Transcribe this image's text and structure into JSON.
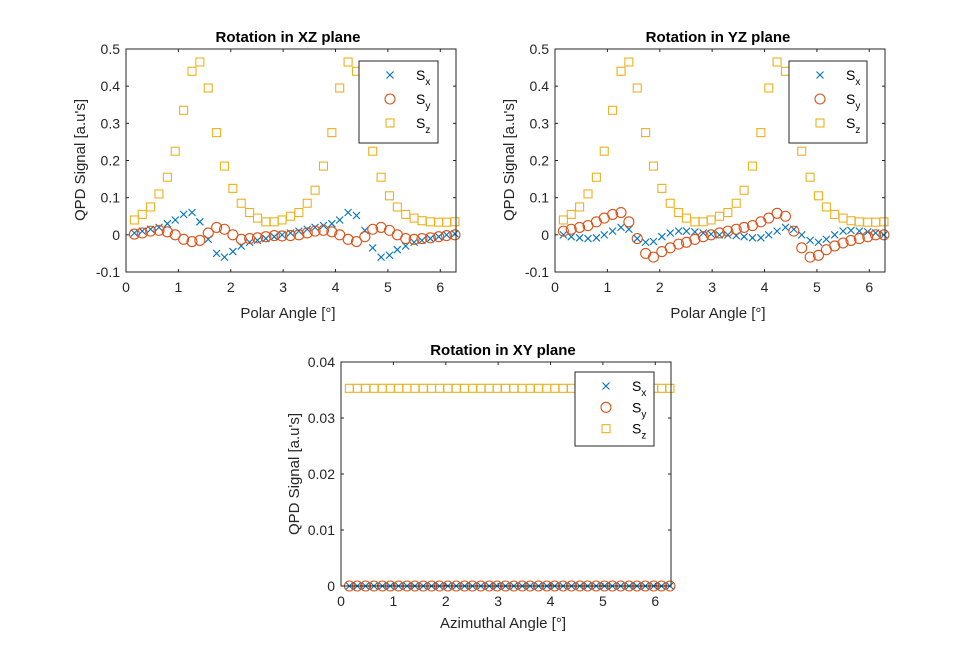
{
  "chart_data": [
    {
      "type": "scatter",
      "title": "Rotation in XZ plane",
      "xlabel": "Polar Angle [°]",
      "ylabel": "QPD Signal [a.u's]",
      "xlim": [
        0,
        6.3
      ],
      "ylim": [
        -0.1,
        0.5
      ],
      "xticks": [
        "0",
        "1",
        "2",
        "3",
        "4",
        "5",
        "6"
      ],
      "yticks": [
        "-0.1",
        "0",
        "0.1",
        "0.2",
        "0.3",
        "0.4",
        "0.5"
      ],
      "legend_position": "top-right",
      "x": [
        0.16,
        0.31,
        0.47,
        0.63,
        0.79,
        0.94,
        1.1,
        1.26,
        1.41,
        1.57,
        1.73,
        1.88,
        2.04,
        2.2,
        2.36,
        2.51,
        2.67,
        2.83,
        2.98,
        3.14,
        3.3,
        3.46,
        3.61,
        3.77,
        3.93,
        4.08,
        4.24,
        4.4,
        4.56,
        4.71,
        4.87,
        5.03,
        5.18,
        5.34,
        5.5,
        5.65,
        5.81,
        5.97,
        6.12,
        6.28
      ],
      "series": [
        {
          "name": "S_x",
          "marker": "x",
          "color": "#0072BD",
          "values": [
            0.005,
            0.01,
            0.015,
            0.02,
            0.03,
            0.04,
            0.055,
            0.06,
            0.035,
            -0.012,
            -0.05,
            -0.06,
            -0.045,
            -0.03,
            -0.02,
            -0.015,
            -0.01,
            -0.005,
            0.0,
            0.005,
            0.01,
            0.015,
            0.02,
            0.025,
            0.03,
            0.04,
            0.06,
            0.052,
            0.012,
            -0.035,
            -0.06,
            -0.055,
            -0.04,
            -0.03,
            -0.02,
            -0.015,
            -0.01,
            -0.005,
            0.0,
            0.003
          ]
        },
        {
          "name": "S_y",
          "marker": "o",
          "color": "#D95319",
          "values": [
            0.002,
            0.005,
            0.01,
            0.012,
            0.008,
            0.0,
            -0.012,
            -0.018,
            -0.015,
            0.005,
            0.02,
            0.015,
            0.0,
            -0.012,
            -0.01,
            -0.008,
            -0.005,
            -0.002,
            -0.003,
            -0.002,
            0.0,
            0.005,
            0.01,
            0.012,
            0.008,
            0.0,
            -0.012,
            -0.018,
            -0.005,
            0.015,
            0.02,
            0.012,
            0.0,
            -0.01,
            -0.012,
            -0.01,
            -0.008,
            -0.005,
            -0.002,
            0.0
          ]
        },
        {
          "name": "S_z",
          "marker": "square",
          "color": "#EDB120",
          "values": [
            0.04,
            0.055,
            0.075,
            0.11,
            0.155,
            0.225,
            0.335,
            0.44,
            0.465,
            0.395,
            0.275,
            0.185,
            0.125,
            0.085,
            0.06,
            0.045,
            0.035,
            0.035,
            0.04,
            0.05,
            0.06,
            0.085,
            0.12,
            0.185,
            0.275,
            0.395,
            0.465,
            0.44,
            0.335,
            0.225,
            0.155,
            0.105,
            0.075,
            0.055,
            0.045,
            0.038,
            0.035,
            0.034,
            0.034,
            0.035
          ]
        }
      ]
    },
    {
      "type": "scatter",
      "title": "Rotation in YZ plane",
      "xlabel": "Polar Angle [°]",
      "ylabel": "QPD Signal [a.u's]",
      "xlim": [
        0,
        6.3
      ],
      "ylim": [
        -0.1,
        0.5
      ],
      "xticks": [
        "0",
        "1",
        "2",
        "3",
        "4",
        "5",
        "6"
      ],
      "yticks": [
        "-0.1",
        "0",
        "0.1",
        "0.2",
        "0.3",
        "0.4",
        "0.5"
      ],
      "legend_position": "top-right",
      "x": [
        0.16,
        0.31,
        0.47,
        0.63,
        0.79,
        0.94,
        1.1,
        1.26,
        1.41,
        1.57,
        1.73,
        1.88,
        2.04,
        2.2,
        2.36,
        2.51,
        2.67,
        2.83,
        2.98,
        3.14,
        3.3,
        3.46,
        3.61,
        3.77,
        3.93,
        4.08,
        4.24,
        4.4,
        4.56,
        4.71,
        4.87,
        5.03,
        5.18,
        5.34,
        5.5,
        5.65,
        5.81,
        5.97,
        6.12,
        6.28
      ],
      "series": [
        {
          "name": "S_x",
          "marker": "x",
          "color": "#0072BD",
          "values": [
            0.0,
            -0.005,
            -0.008,
            -0.01,
            -0.008,
            0.0,
            0.01,
            0.02,
            0.015,
            -0.01,
            -0.02,
            -0.018,
            -0.005,
            0.005,
            0.01,
            0.01,
            0.008,
            0.005,
            0.002,
            0.0,
            0.0,
            -0.002,
            -0.005,
            -0.008,
            -0.008,
            0.0,
            0.01,
            0.02,
            0.015,
            0.0,
            -0.015,
            -0.02,
            -0.012,
            0.0,
            0.01,
            0.012,
            0.01,
            0.008,
            0.005,
            0.0
          ]
        },
        {
          "name": "S_y",
          "marker": "o",
          "color": "#D95319",
          "values": [
            0.01,
            0.015,
            0.02,
            0.025,
            0.035,
            0.045,
            0.055,
            0.06,
            0.035,
            -0.01,
            -0.05,
            -0.06,
            -0.045,
            -0.035,
            -0.025,
            -0.02,
            -0.012,
            -0.005,
            0.0,
            0.005,
            0.01,
            0.015,
            0.02,
            0.025,
            0.035,
            0.045,
            0.058,
            0.05,
            0.01,
            -0.035,
            -0.06,
            -0.055,
            -0.04,
            -0.03,
            -0.022,
            -0.015,
            -0.01,
            -0.005,
            0.0,
            0.0
          ]
        },
        {
          "name": "S_z",
          "marker": "square",
          "color": "#EDB120",
          "values": [
            0.04,
            0.055,
            0.075,
            0.11,
            0.155,
            0.225,
            0.335,
            0.44,
            0.465,
            0.395,
            0.275,
            0.185,
            0.125,
            0.085,
            0.06,
            0.045,
            0.035,
            0.035,
            0.04,
            0.05,
            0.06,
            0.085,
            0.12,
            0.185,
            0.275,
            0.395,
            0.465,
            0.44,
            0.335,
            0.225,
            0.155,
            0.105,
            0.075,
            0.055,
            0.045,
            0.038,
            0.035,
            0.034,
            0.034,
            0.035
          ]
        }
      ]
    },
    {
      "type": "scatter",
      "title": "Rotation in XY plane",
      "xlabel": "Azimuthal Angle [°]",
      "ylabel": "QPD Signal [a.u's]",
      "xlim": [
        0,
        6.3
      ],
      "ylim": [
        0,
        0.04
      ],
      "xticks": [
        "0",
        "1",
        "2",
        "3",
        "4",
        "5",
        "6"
      ],
      "yticks": [
        "0",
        "0.01",
        "0.02",
        "0.03",
        "0.04"
      ],
      "legend_position": "top-right",
      "x": [
        0.16,
        0.31,
        0.47,
        0.63,
        0.79,
        0.94,
        1.1,
        1.26,
        1.41,
        1.57,
        1.73,
        1.88,
        2.04,
        2.2,
        2.36,
        2.51,
        2.67,
        2.83,
        2.98,
        3.14,
        3.3,
        3.46,
        3.61,
        3.77,
        3.93,
        4.08,
        4.24,
        4.4,
        4.56,
        4.71,
        4.87,
        5.03,
        5.18,
        5.34,
        5.5,
        5.65,
        5.81,
        5.97,
        6.12,
        6.28
      ],
      "series": [
        {
          "name": "S_x",
          "marker": "x",
          "color": "#0072BD",
          "values": [
            0,
            0,
            0,
            0,
            0,
            0,
            0,
            0,
            0,
            0,
            0,
            0,
            0,
            0,
            0,
            0,
            0,
            0,
            0,
            0,
            0,
            0,
            0,
            0,
            0,
            0,
            0,
            0,
            0,
            0,
            0,
            0,
            0,
            0,
            0,
            0,
            0,
            0,
            0,
            0
          ]
        },
        {
          "name": "S_y",
          "marker": "o",
          "color": "#D95319",
          "values": [
            0,
            0,
            0,
            0,
            0,
            0,
            0,
            0,
            0,
            0,
            0,
            0,
            0,
            0,
            0,
            0,
            0,
            0,
            0,
            0,
            0,
            0,
            0,
            0,
            0,
            0,
            0,
            0,
            0,
            0,
            0,
            0,
            0,
            0,
            0,
            0,
            0,
            0,
            0,
            0
          ]
        },
        {
          "name": "S_z",
          "marker": "square",
          "color": "#EDB120",
          "values": [
            0.0353,
            0.0353,
            0.0353,
            0.0353,
            0.0353,
            0.0353,
            0.0353,
            0.0353,
            0.0353,
            0.0353,
            0.0353,
            0.0353,
            0.0353,
            0.0353,
            0.0353,
            0.0353,
            0.0353,
            0.0353,
            0.0353,
            0.0353,
            0.0353,
            0.0353,
            0.0353,
            0.0353,
            0.0353,
            0.0353,
            0.0353,
            0.0353,
            0.0353,
            0.0353,
            0.0353,
            0.0353,
            0.0353,
            0.0353,
            0.0353,
            0.0353,
            0.0353,
            0.0353,
            0.0353,
            0.0353
          ]
        }
      ]
    }
  ]
}
